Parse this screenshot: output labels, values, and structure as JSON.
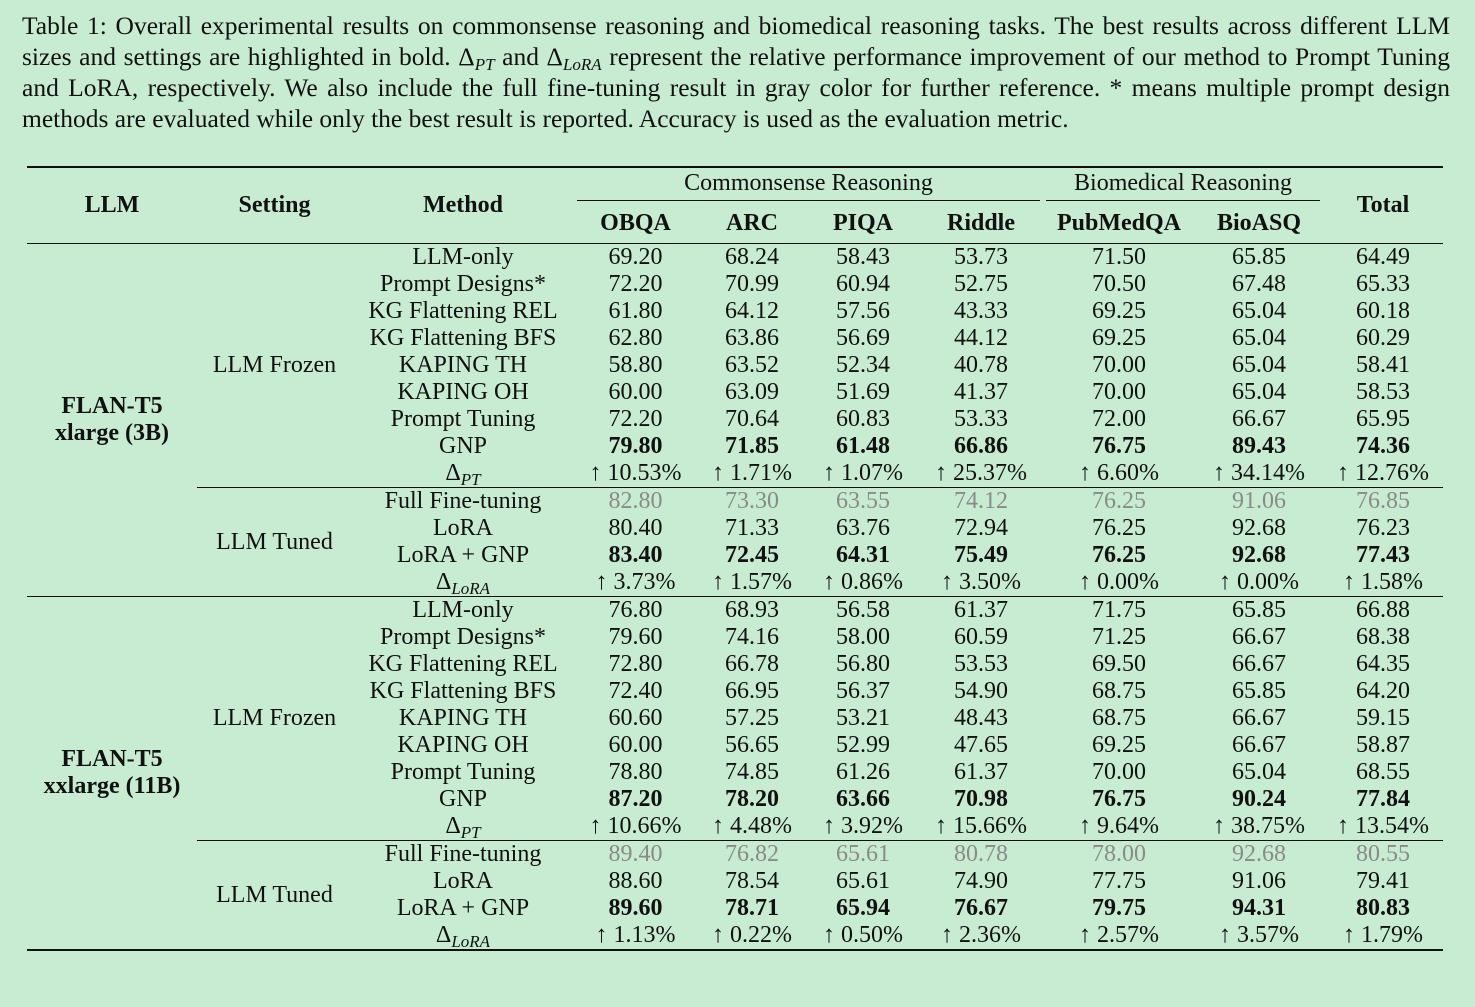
{
  "caption": {
    "p1": "Table 1: Overall experimental results on commonsense reasoning and biomedical reasoning tasks. The best results across different LLM sizes and settings are highlighted in bold. ",
    "delta": "Δ",
    "sub_pt": "PT",
    "and": " and ",
    "sub_lora": "LoRA",
    "p2": " represent the relative performance improvement of our method to Prompt Tuning and LoRA, respectively. We also include the full fine-tuning result in gray color for further reference. * means multiple prompt design methods are evaluated while only the best result is reported. Accuracy is used as the evaluation metric."
  },
  "headers": {
    "llm": "LLM",
    "setting": "Setting",
    "method": "Method",
    "commonsense": "Commonsense Reasoning",
    "biomedical": "Biomedical Reasoning",
    "total": "Total",
    "columns": [
      "OBQA",
      "ARC",
      "PIQA",
      "Riddle",
      "PubMedQA",
      "BioASQ"
    ]
  },
  "delta_symbol": "Δ",
  "blocks": [
    {
      "llm_line1": "FLAN-T5",
      "llm_line2": "xlarge (3B)",
      "frozen": {
        "setting": "LLM Frozen",
        "rows": [
          {
            "method": "LLM-only",
            "vals": [
              "69.20",
              "68.24",
              "58.43",
              "53.73",
              "71.50",
              "65.85",
              "64.49"
            ]
          },
          {
            "method": "Prompt Designs*",
            "vals": [
              "72.20",
              "70.99",
              "60.94",
              "52.75",
              "70.50",
              "67.48",
              "65.33"
            ]
          },
          {
            "method": "KG Flattening REL",
            "vals": [
              "61.80",
              "64.12",
              "57.56",
              "43.33",
              "69.25",
              "65.04",
              "60.18"
            ]
          },
          {
            "method": "KG Flattening BFS",
            "vals": [
              "62.80",
              "63.86",
              "56.69",
              "44.12",
              "69.25",
              "65.04",
              "60.29"
            ]
          },
          {
            "method": "KAPING TH",
            "vals": [
              "58.80",
              "63.52",
              "52.34",
              "40.78",
              "70.00",
              "65.04",
              "58.41"
            ]
          },
          {
            "method": "KAPING OH",
            "vals": [
              "60.00",
              "63.09",
              "51.69",
              "41.37",
              "70.00",
              "65.04",
              "58.53"
            ]
          },
          {
            "method": "Prompt Tuning",
            "vals": [
              "72.20",
              "70.64",
              "60.83",
              "53.33",
              "72.00",
              "66.67",
              "65.95"
            ]
          },
          {
            "method": "GNP",
            "vals": [
              "79.80",
              "71.85",
              "61.48",
              "66.86",
              "76.75",
              "89.43",
              "74.36"
            ]
          }
        ],
        "delta_sub": "PT",
        "delta_vals": [
          "↑ 10.53%",
          "↑ 1.71%",
          "↑ 1.07%",
          "↑ 25.37%",
          "↑ 6.60%",
          "↑ 34.14%",
          "↑ 12.76%"
        ]
      },
      "tuned": {
        "setting": "LLM Tuned",
        "full": {
          "method": "Full Fine-tuning",
          "vals": [
            "82.80",
            "73.30",
            "63.55",
            "74.12",
            "76.25",
            "91.06",
            "76.85"
          ]
        },
        "lora": {
          "method": "LoRA",
          "vals": [
            "80.40",
            "71.33",
            "63.76",
            "72.94",
            "76.25",
            "92.68",
            "76.23"
          ]
        },
        "lora_gnp": {
          "method": "LoRA + GNP",
          "vals": [
            "83.40",
            "72.45",
            "64.31",
            "75.49",
            "76.25",
            "92.68",
            "77.43"
          ]
        },
        "delta_sub": "LoRA",
        "delta_vals": [
          "↑ 3.73%",
          "↑ 1.57%",
          "↑ 0.86%",
          "↑ 3.50%",
          "↑ 0.00%",
          "↑ 0.00%",
          "↑ 1.58%"
        ]
      }
    },
    {
      "llm_line1": "FLAN-T5",
      "llm_line2": "xxlarge (11B)",
      "frozen": {
        "setting": "LLM Frozen",
        "rows": [
          {
            "method": "LLM-only",
            "vals": [
              "76.80",
              "68.93",
              "56.58",
              "61.37",
              "71.75",
              "65.85",
              "66.88"
            ]
          },
          {
            "method": "Prompt Designs*",
            "vals": [
              "79.60",
              "74.16",
              "58.00",
              "60.59",
              "71.25",
              "66.67",
              "68.38"
            ]
          },
          {
            "method": "KG Flattening REL",
            "vals": [
              "72.80",
              "66.78",
              "56.80",
              "53.53",
              "69.50",
              "66.67",
              "64.35"
            ]
          },
          {
            "method": "KG Flattening BFS",
            "vals": [
              "72.40",
              "66.95",
              "56.37",
              "54.90",
              "68.75",
              "65.85",
              "64.20"
            ]
          },
          {
            "method": "KAPING TH",
            "vals": [
              "60.60",
              "57.25",
              "53.21",
              "48.43",
              "68.75",
              "66.67",
              "59.15"
            ]
          },
          {
            "method": "KAPING OH",
            "vals": [
              "60.00",
              "56.65",
              "52.99",
              "47.65",
              "69.25",
              "66.67",
              "58.87"
            ]
          },
          {
            "method": "Prompt Tuning",
            "vals": [
              "78.80",
              "74.85",
              "61.26",
              "61.37",
              "70.00",
              "65.04",
              "68.55"
            ]
          },
          {
            "method": "GNP",
            "vals": [
              "87.20",
              "78.20",
              "63.66",
              "70.98",
              "76.75",
              "90.24",
              "77.84"
            ]
          }
        ],
        "delta_sub": "PT",
        "delta_vals": [
          "↑ 10.66%",
          "↑ 4.48%",
          "↑ 3.92%",
          "↑ 15.66%",
          "↑ 9.64%",
          "↑ 38.75%",
          "↑ 13.54%"
        ]
      },
      "tuned": {
        "setting": "LLM Tuned",
        "full": {
          "method": "Full Fine-tuning",
          "vals": [
            "89.40",
            "76.82",
            "65.61",
            "80.78",
            "78.00",
            "92.68",
            "80.55"
          ]
        },
        "lora": {
          "method": "LoRA",
          "vals": [
            "88.60",
            "78.54",
            "65.61",
            "74.90",
            "77.75",
            "91.06",
            "79.41"
          ]
        },
        "lora_gnp": {
          "method": "LoRA + GNP",
          "vals": [
            "89.60",
            "78.71",
            "65.94",
            "76.67",
            "79.75",
            "94.31",
            "80.83"
          ]
        },
        "delta_sub": "LoRA",
        "delta_vals": [
          "↑ 1.13%",
          "↑ 0.22%",
          "↑ 0.50%",
          "↑ 2.36%",
          "↑ 2.57%",
          "↑ 3.57%",
          "↑ 1.79%"
        ]
      }
    }
  ]
}
